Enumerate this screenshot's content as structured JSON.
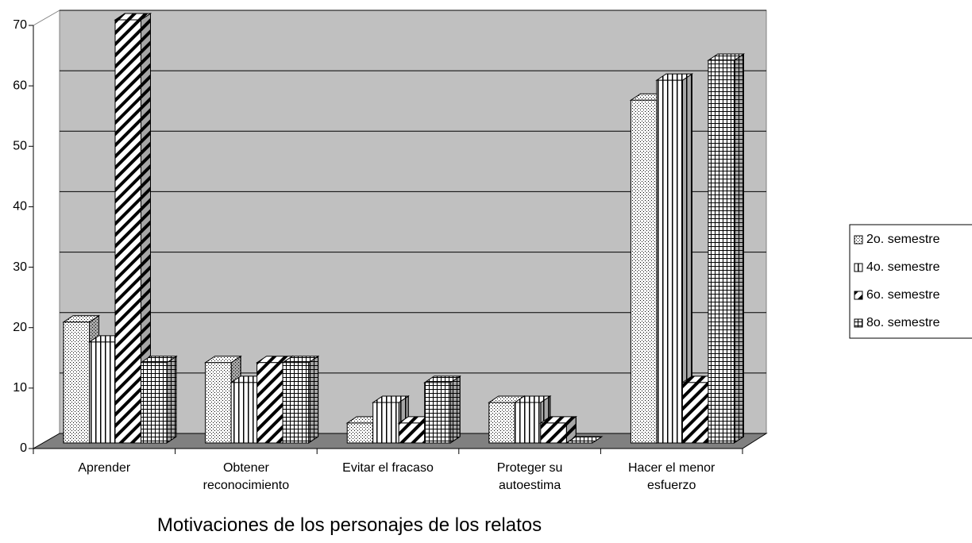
{
  "chart_data": {
    "type": "bar3d",
    "x_label": "Motivaciones de los personajes de los relatos",
    "categories": [
      "Aprender",
      "Obtener reconocimiento",
      "Evitar el fracaso",
      "Proteger su autoestima",
      "Hacer el menor esfuerzo"
    ],
    "series": [
      {
        "name": "2o. semestre",
        "color": "#ffffff",
        "pattern": "dots",
        "values": [
          20,
          13.3,
          3.3,
          6.7,
          56.7
        ]
      },
      {
        "name": "4o. semestre",
        "color": "#ffffff",
        "pattern": "vertical",
        "values": [
          16.7,
          10,
          6.7,
          6.7,
          60
        ]
      },
      {
        "name": "6o. semestre",
        "color": "#ffffff",
        "pattern": "diagonal",
        "values": [
          70,
          13.3,
          3.3,
          3.3,
          10
        ]
      },
      {
        "name": "8o. semestre",
        "color": "#ffffff",
        "pattern": "grid",
        "values": [
          13.3,
          13.3,
          10,
          0,
          63.3
        ]
      }
    ],
    "ylim": [
      0,
      70
    ],
    "yticks": [
      0,
      10,
      20,
      30,
      40,
      50,
      60,
      70
    ],
    "grid": true,
    "legend": "right"
  }
}
